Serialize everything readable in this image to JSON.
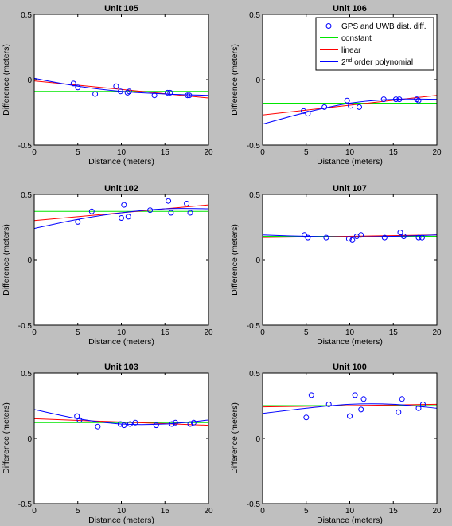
{
  "figure": {
    "background": "#bfbfbf",
    "colors": {
      "points": "#0000ff",
      "constant": "#00e600",
      "linear": "#ff0000",
      "poly2": "#0000ff"
    }
  },
  "legend": {
    "items": [
      {
        "label": "GPS and UWB dist. diff.",
        "marker": "circle",
        "color": "#0000ff"
      },
      {
        "label": "constant",
        "marker": "line",
        "color": "#00e600"
      },
      {
        "label": "linear",
        "marker": "line",
        "color": "#ff0000"
      },
      {
        "label": "2nd order polynomial",
        "marker": "line",
        "color": "#0000ff"
      }
    ],
    "placement": "top-right of Unit 106 panel"
  },
  "chart_data": [
    {
      "type": "scatter",
      "title": "Unit 105",
      "xlabel": "Distance (meters)",
      "ylabel": "Difference (meters)",
      "xlim": [
        0,
        20
      ],
      "ylim": [
        -0.5,
        0.5
      ],
      "xticks": [
        0,
        5,
        10,
        15,
        20
      ],
      "yticks": [
        -0.5,
        0,
        0.5
      ],
      "points": [
        [
          4.5,
          -0.03
        ],
        [
          5.0,
          -0.06
        ],
        [
          7.0,
          -0.11
        ],
        [
          9.4,
          -0.05
        ],
        [
          9.9,
          -0.09
        ],
        [
          10.7,
          -0.1
        ],
        [
          10.9,
          -0.09
        ],
        [
          13.8,
          -0.12
        ],
        [
          15.3,
          -0.1
        ],
        [
          15.6,
          -0.1
        ],
        [
          17.6,
          -0.12
        ],
        [
          17.8,
          -0.12
        ]
      ],
      "fits": {
        "constant": [
          [
            0,
            -0.09
          ],
          [
            20,
            -0.09
          ]
        ],
        "linear": [
          [
            0,
            -0.01
          ],
          [
            20,
            -0.14
          ]
        ],
        "poly2": [
          [
            0,
            0.01
          ],
          [
            5,
            -0.05
          ],
          [
            10,
            -0.09
          ],
          [
            15,
            -0.11
          ],
          [
            20,
            -0.12
          ]
        ]
      }
    },
    {
      "type": "scatter",
      "title": "Unit 106",
      "xlabel": "Distance (meters)",
      "ylabel": "Difference (meters)",
      "xlim": [
        0,
        20
      ],
      "ylim": [
        -0.5,
        0.5
      ],
      "xticks": [
        0,
        5,
        10,
        15,
        20
      ],
      "yticks": [
        -0.5,
        0,
        0.5
      ],
      "points": [
        [
          4.7,
          -0.24
        ],
        [
          5.2,
          -0.26
        ],
        [
          7.1,
          -0.21
        ],
        [
          9.7,
          -0.16
        ],
        [
          10.1,
          -0.2
        ],
        [
          11.1,
          -0.21
        ],
        [
          13.9,
          -0.15
        ],
        [
          15.3,
          -0.15
        ],
        [
          15.7,
          -0.15
        ],
        [
          17.7,
          -0.15
        ],
        [
          17.9,
          -0.16
        ]
      ],
      "fits": {
        "constant": [
          [
            0,
            -0.18
          ],
          [
            20,
            -0.18
          ]
        ],
        "linear": [
          [
            0,
            -0.27
          ],
          [
            20,
            -0.12
          ]
        ],
        "poly2": [
          [
            0,
            -0.34
          ],
          [
            5,
            -0.25
          ],
          [
            10,
            -0.18
          ],
          [
            15,
            -0.15
          ],
          [
            20,
            -0.15
          ]
        ]
      }
    },
    {
      "type": "scatter",
      "title": "Unit 102",
      "xlabel": "Distance (meters)",
      "ylabel": "Difference (meters)",
      "xlim": [
        0,
        20
      ],
      "ylim": [
        -0.5,
        0.5
      ],
      "xticks": [
        0,
        5,
        10,
        15,
        20
      ],
      "yticks": [
        -0.5,
        0,
        0.5
      ],
      "points": [
        [
          5.0,
          0.29
        ],
        [
          6.6,
          0.37
        ],
        [
          10.0,
          0.32
        ],
        [
          10.3,
          0.42
        ],
        [
          10.8,
          0.33
        ],
        [
          13.3,
          0.38
        ],
        [
          15.4,
          0.45
        ],
        [
          15.7,
          0.36
        ],
        [
          17.5,
          0.43
        ],
        [
          17.9,
          0.36
        ]
      ],
      "fits": {
        "constant": [
          [
            0,
            0.37
          ],
          [
            20,
            0.37
          ]
        ],
        "linear": [
          [
            0,
            0.3
          ],
          [
            20,
            0.42
          ]
        ],
        "poly2": [
          [
            0,
            0.24
          ],
          [
            5,
            0.31
          ],
          [
            10,
            0.36
          ],
          [
            15,
            0.39
          ],
          [
            20,
            0.39
          ]
        ]
      }
    },
    {
      "type": "scatter",
      "title": "Unit 107",
      "xlabel": "Distance (meters)",
      "ylabel": "Difference (meters)",
      "xlim": [
        0,
        20
      ],
      "ylim": [
        -0.5,
        0.5
      ],
      "xticks": [
        0,
        5,
        10,
        15,
        20
      ],
      "yticks": [
        -0.5,
        0,
        0.5
      ],
      "points": [
        [
          4.8,
          0.19
        ],
        [
          5.2,
          0.17
        ],
        [
          7.3,
          0.17
        ],
        [
          9.9,
          0.16
        ],
        [
          10.3,
          0.15
        ],
        [
          10.8,
          0.18
        ],
        [
          11.3,
          0.19
        ],
        [
          14.0,
          0.17
        ],
        [
          15.8,
          0.21
        ],
        [
          16.2,
          0.18
        ],
        [
          17.9,
          0.17
        ],
        [
          18.3,
          0.17
        ]
      ],
      "fits": {
        "constant": [
          [
            0,
            0.18
          ],
          [
            20,
            0.18
          ]
        ],
        "linear": [
          [
            0,
            0.17
          ],
          [
            20,
            0.19
          ]
        ],
        "poly2": [
          [
            0,
            0.19
          ],
          [
            5,
            0.18
          ],
          [
            10,
            0.175
          ],
          [
            15,
            0.18
          ],
          [
            20,
            0.19
          ]
        ]
      }
    },
    {
      "type": "scatter",
      "title": "Unit 103",
      "xlabel": "Distance (meters)",
      "ylabel": "Difference (meters)",
      "xlim": [
        0,
        20
      ],
      "ylim": [
        -0.5,
        0.5
      ],
      "xticks": [
        0,
        5,
        10,
        15,
        20
      ],
      "yticks": [
        -0.5,
        0,
        0.5
      ],
      "points": [
        [
          4.9,
          0.17
        ],
        [
          5.2,
          0.14
        ],
        [
          7.3,
          0.09
        ],
        [
          9.9,
          0.11
        ],
        [
          10.3,
          0.1
        ],
        [
          11.0,
          0.11
        ],
        [
          11.6,
          0.12
        ],
        [
          14.0,
          0.1
        ],
        [
          15.8,
          0.11
        ],
        [
          16.2,
          0.12
        ],
        [
          17.9,
          0.11
        ],
        [
          18.3,
          0.12
        ]
      ],
      "fits": {
        "constant": [
          [
            0,
            0.12
          ],
          [
            20,
            0.12
          ]
        ],
        "linear": [
          [
            0,
            0.15
          ],
          [
            20,
            0.1
          ]
        ],
        "poly2": [
          [
            0,
            0.22
          ],
          [
            5,
            0.15
          ],
          [
            10,
            0.11
          ],
          [
            15,
            0.11
          ],
          [
            20,
            0.14
          ]
        ]
      }
    },
    {
      "type": "scatter",
      "title": "Unit 100",
      "xlabel": "Distance (meters)",
      "ylabel": "Difference (meters)",
      "xlim": [
        0,
        20
      ],
      "ylim": [
        -0.5,
        0.5
      ],
      "xticks": [
        0,
        5,
        10,
        15,
        20
      ],
      "yticks": [
        -0.5,
        0,
        0.5
      ],
      "points": [
        [
          5.0,
          0.16
        ],
        [
          5.6,
          0.33
        ],
        [
          7.6,
          0.26
        ],
        [
          10.0,
          0.17
        ],
        [
          10.6,
          0.33
        ],
        [
          11.3,
          0.22
        ],
        [
          11.6,
          0.3
        ],
        [
          15.6,
          0.2
        ],
        [
          16.0,
          0.3
        ],
        [
          17.9,
          0.23
        ],
        [
          18.4,
          0.26
        ]
      ],
      "fits": {
        "constant": [
          [
            0,
            0.25
          ],
          [
            20,
            0.25
          ]
        ],
        "linear": [
          [
            0,
            0.24
          ],
          [
            20,
            0.26
          ]
        ],
        "poly2": [
          [
            0,
            0.19
          ],
          [
            5,
            0.23
          ],
          [
            10,
            0.26
          ],
          [
            15,
            0.26
          ],
          [
            20,
            0.23
          ]
        ]
      }
    }
  ]
}
